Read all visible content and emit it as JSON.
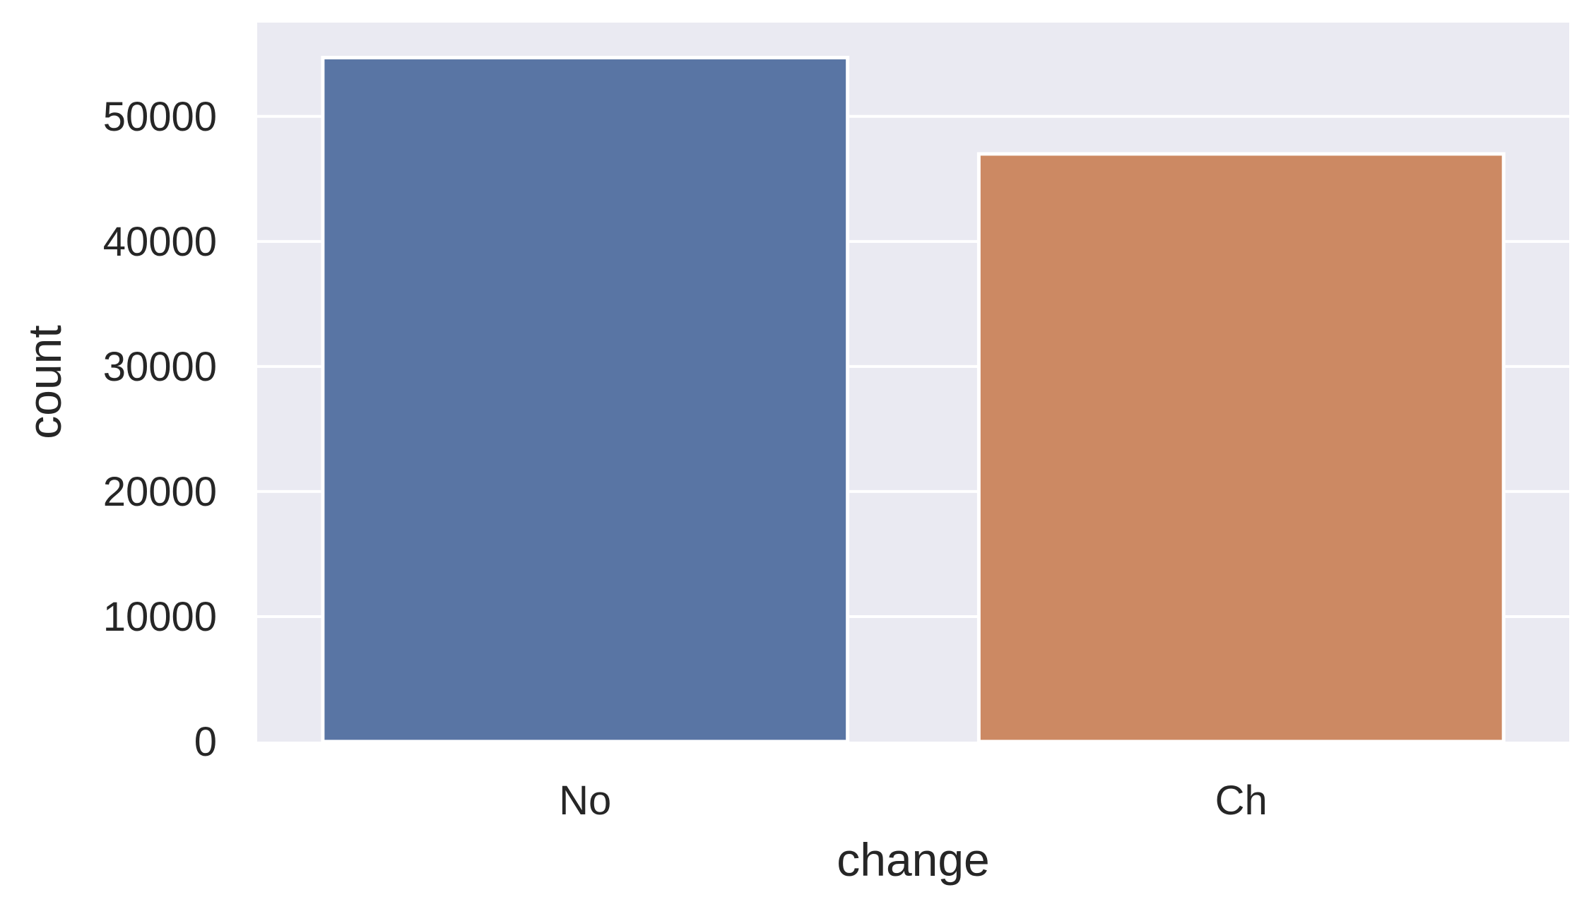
{
  "chart_data": {
    "type": "bar",
    "title": "",
    "xlabel": "change",
    "ylabel": "count",
    "categories": [
      "No",
      "Ch"
    ],
    "values": [
      54700,
      47000
    ],
    "ylim": [
      0,
      57500
    ],
    "yticks": [
      0,
      10000,
      20000,
      30000,
      40000,
      50000
    ],
    "ytick_labels": [
      "0",
      "10000",
      "20000",
      "30000",
      "40000",
      "50000"
    ],
    "grid": true,
    "legend": false,
    "colors": {
      "background": "#eaeaf2",
      "grid": "#ffffff",
      "bars": [
        "#5975a4",
        "#cc8963"
      ],
      "bar_edge": "#ffffff",
      "text": "#262626"
    }
  }
}
